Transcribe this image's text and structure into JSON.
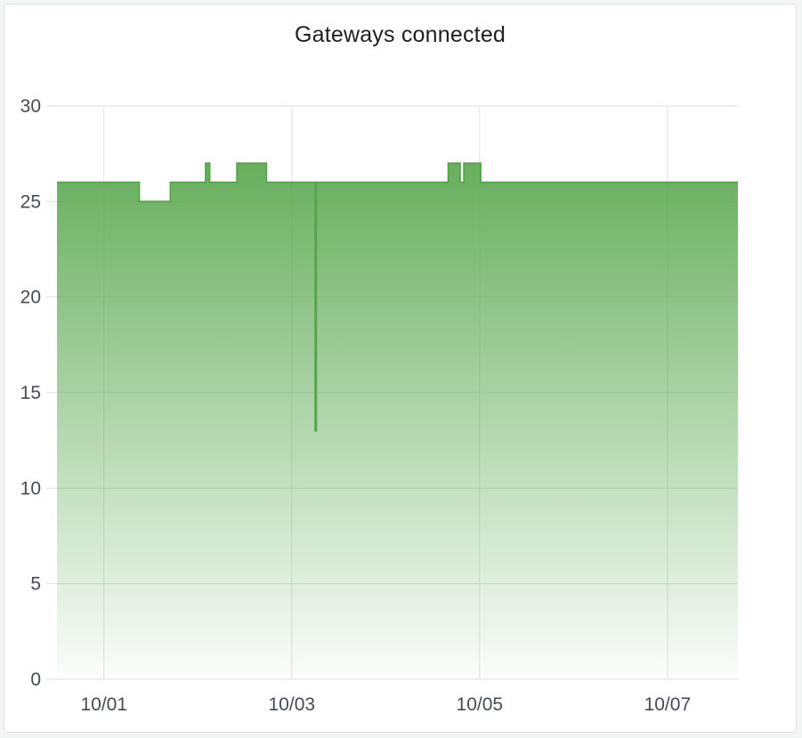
{
  "panel": {
    "title": "Gateways connected"
  },
  "chart_data": {
    "type": "area",
    "title": "Gateways connected",
    "xlabel": "",
    "ylabel": "",
    "xlim": [
      "2023-09-30T12:00",
      "2023-10-07T18:00"
    ],
    "ylim": [
      0,
      30
    ],
    "y_ticks": [
      0,
      5,
      10,
      15,
      20,
      25,
      30
    ],
    "x_ticks": [
      {
        "label": "10/01",
        "t": "2023-10-01T00:00"
      },
      {
        "label": "10/03",
        "t": "2023-10-03T00:00"
      },
      {
        "label": "10/05",
        "t": "2023-10-05T00:00"
      },
      {
        "label": "10/07",
        "t": "2023-10-07T00:00"
      }
    ],
    "grid": true,
    "legend": "none",
    "color": "#56a64b",
    "step": "after",
    "series": [
      {
        "points": [
          {
            "t": "2023-09-30T12:00",
            "y": 26
          },
          {
            "t": "2023-10-01T09:00",
            "y": 25
          },
          {
            "t": "2023-10-01T17:00",
            "y": 26
          },
          {
            "t": "2023-10-02T02:00",
            "y": 27
          },
          {
            "t": "2023-10-02T03:00",
            "y": 26
          },
          {
            "t": "2023-10-02T10:00",
            "y": 27
          },
          {
            "t": "2023-10-02T17:30",
            "y": 26
          },
          {
            "t": "2023-10-03T06:00",
            "y": 13
          },
          {
            "t": "2023-10-03T06:15",
            "y": 26
          },
          {
            "t": "2023-10-04T16:00",
            "y": 27
          },
          {
            "t": "2023-10-04T19:00",
            "y": 26
          },
          {
            "t": "2023-10-04T20:00",
            "y": 27
          },
          {
            "t": "2023-10-05T00:15",
            "y": 26
          },
          {
            "t": "2023-10-07T18:00",
            "y": 26
          }
        ]
      }
    ]
  }
}
